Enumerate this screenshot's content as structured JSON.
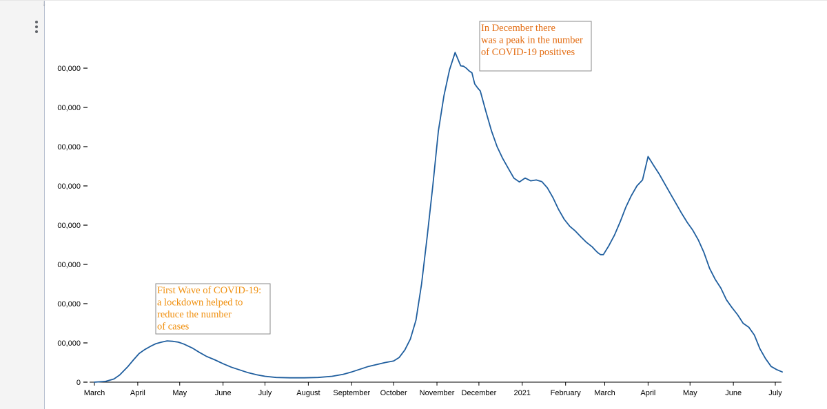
{
  "chart_data": {
    "type": "line",
    "title": "",
    "xlabel": "",
    "ylabel": "",
    "ylim": [
      0,
      900000
    ],
    "yticks": [
      {
        "value": 0,
        "label": "0"
      },
      {
        "value": 100000,
        "label": "00,000"
      },
      {
        "value": 200000,
        "label": "00,000"
      },
      {
        "value": 300000,
        "label": "00,000"
      },
      {
        "value": 400000,
        "label": "00,000"
      },
      {
        "value": 500000,
        "label": "00,000"
      },
      {
        "value": 600000,
        "label": "00,000"
      },
      {
        "value": 700000,
        "label": "00,000"
      },
      {
        "value": 800000,
        "label": "00,000"
      }
    ],
    "x_start": "2020-03-01",
    "x_end": "2021-07-01",
    "xticks": [
      {
        "day": 0,
        "label": "March"
      },
      {
        "day": 31,
        "label": "April"
      },
      {
        "day": 61,
        "label": "May"
      },
      {
        "day": 92,
        "label": "June"
      },
      {
        "day": 122,
        "label": "July"
      },
      {
        "day": 153,
        "label": "August"
      },
      {
        "day": 184,
        "label": "September"
      },
      {
        "day": 214,
        "label": "October"
      },
      {
        "day": 245,
        "label": "November"
      },
      {
        "day": 275,
        "label": "December"
      },
      {
        "day": 306,
        "label": "2021"
      },
      {
        "day": 337,
        "label": "February"
      },
      {
        "day": 365,
        "label": "March"
      },
      {
        "day": 396,
        "label": "April"
      },
      {
        "day": 426,
        "label": "May"
      },
      {
        "day": 457,
        "label": "June"
      },
      {
        "day": 487,
        "label": "July"
      }
    ],
    "series": [
      {
        "name": "COVID-19 positives",
        "color": "#1f5e9e",
        "x": [
          0,
          8,
          14,
          18,
          24,
          28,
          32,
          36,
          40,
          44,
          48,
          52,
          56,
          60,
          64,
          70,
          75,
          80,
          86,
          92,
          98,
          104,
          110,
          116,
          122,
          130,
          140,
          150,
          160,
          170,
          178,
          184,
          190,
          196,
          202,
          208,
          214,
          218,
          222,
          226,
          230,
          234,
          238,
          242,
          246,
          250,
          254,
          258,
          262,
          264,
          266,
          268,
          270,
          272,
          274,
          276,
          280,
          284,
          288,
          292,
          296,
          300,
          304,
          308,
          312,
          316,
          320,
          324,
          328,
          332,
          336,
          340,
          344,
          348,
          352,
          356,
          358,
          360,
          362,
          364,
          368,
          372,
          376,
          380,
          384,
          388,
          392,
          396,
          400,
          404,
          408,
          412,
          416,
          420,
          424,
          428,
          432,
          436,
          440,
          444,
          448,
          452,
          456,
          460,
          464,
          468,
          472,
          476,
          480,
          484,
          488,
          492
        ],
        "values": [
          0,
          2000,
          8000,
          18000,
          40000,
          57000,
          73000,
          83000,
          91000,
          98000,
          102000,
          105000,
          104000,
          102000,
          97000,
          87000,
          76000,
          66000,
          57000,
          47000,
          38000,
          31000,
          24000,
          19000,
          15000,
          12000,
          11000,
          11000,
          12000,
          15000,
          20000,
          26000,
          33000,
          40000,
          45000,
          50000,
          54000,
          63000,
          82000,
          110000,
          158000,
          250000,
          370000,
          500000,
          640000,
          730000,
          796000,
          840000,
          806000,
          805000,
          800000,
          793000,
          788000,
          760000,
          750000,
          742000,
          690000,
          640000,
          600000,
          570000,
          545000,
          520000,
          510000,
          520000,
          513000,
          515000,
          511000,
          495000,
          470000,
          440000,
          415000,
          397000,
          385000,
          370000,
          356000,
          345000,
          337000,
          330000,
          325000,
          325000,
          348000,
          375000,
          408000,
          445000,
          475000,
          500000,
          515000,
          575000,
          552000,
          530000,
          505000,
          480000,
          455000,
          430000,
          407000,
          387000,
          362000,
          330000,
          290000,
          262000,
          240000,
          210000,
          190000,
          172000,
          150000,
          140000,
          120000,
          85000,
          60000,
          40000,
          32000,
          26000
        ]
      }
    ],
    "annotations": [
      {
        "lines": [
          "In December there",
          "was a peak in the number",
          "of COVID-19 positives"
        ],
        "color": "#e36d13",
        "anchor_day": 275,
        "anchor_value": 790000
      },
      {
        "lines": [
          "First Wave of COVID-19:",
          "a lockdown helped to",
          "reduce the number",
          "of cases"
        ],
        "color": "#f0900f",
        "anchor_day": 55,
        "anchor_value": 200000
      }
    ]
  },
  "ui": {
    "cell_menu_icon": "vertical-ellipsis-icon",
    "drag_handle_icon": "arrow-down-icon",
    "drag_handle_glyph": "↓"
  }
}
